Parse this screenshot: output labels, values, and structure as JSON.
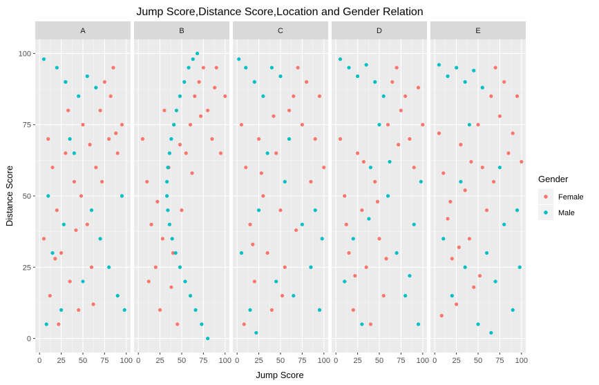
{
  "chart_data": {
    "type": "scatter",
    "title": "Jump Score,Distance Score,Location and Gender Relation",
    "xlabel": "Jump Score",
    "ylabel": "Distance Score",
    "xlim": [
      0,
      100
    ],
    "ylim": [
      0,
      100
    ],
    "x_ticks": [
      0,
      25,
      50,
      75,
      100
    ],
    "y_ticks": [
      0,
      25,
      50,
      75,
      100
    ],
    "x_tick_labels": [
      "0",
      "25",
      "50",
      "75",
      "100"
    ],
    "y_tick_labels": [
      "0",
      "25",
      "50",
      "75",
      "100"
    ],
    "grid": true,
    "legend": {
      "title": "Gender",
      "position": "right",
      "entries": [
        {
          "name": "Female",
          "color": "#F8766D"
        },
        {
          "name": "Male",
          "color": "#00BFC4"
        }
      ]
    },
    "facets": [
      {
        "label": "A",
        "series": [
          {
            "name": "Female",
            "points": [
              [
                10,
                70
              ],
              [
                15,
                60
              ],
              [
                20,
                45
              ],
              [
                25,
                30
              ],
              [
                30,
                65
              ],
              [
                35,
                20
              ],
              [
                40,
                55
              ],
              [
                45,
                10
              ],
              [
                50,
                75
              ],
              [
                55,
                40
              ],
              [
                60,
                25
              ],
              [
                65,
                60
              ],
              [
                70,
                80
              ],
              [
                75,
                90
              ],
              [
                80,
                70
              ],
              [
                85,
                95
              ],
              [
                90,
                65
              ],
              [
                95,
                75
              ],
              [
                5,
                35
              ],
              [
                12,
                15
              ],
              [
                22,
                5
              ],
              [
                33,
                80
              ],
              [
                48,
                50
              ],
              [
                58,
                68
              ],
              [
                72,
                55
              ],
              [
                82,
                85
              ],
              [
                88,
                72
              ],
              [
                18,
                28
              ],
              [
                42,
                38
              ],
              [
                62,
                12
              ]
            ]
          },
          {
            "name": "Male",
            "points": [
              [
                5,
                98
              ],
              [
                20,
                95
              ],
              [
                30,
                90
              ],
              [
                45,
                85
              ],
              [
                55,
                92
              ],
              [
                65,
                88
              ],
              [
                10,
                50
              ],
              [
                15,
                30
              ],
              [
                25,
                10
              ],
              [
                35,
                70
              ],
              [
                50,
                20
              ],
              [
                60,
                45
              ],
              [
                70,
                35
              ],
              [
                80,
                25
              ],
              [
                90,
                15
              ],
              [
                95,
                50
              ],
              [
                98,
                10
              ],
              [
                40,
                65
              ],
              [
                8,
                5
              ],
              [
                28,
                40
              ]
            ]
          }
        ]
      },
      {
        "label": "B",
        "series": [
          {
            "name": "Female",
            "points": [
              [
                5,
                70
              ],
              [
                10,
                55
              ],
              [
                15,
                40
              ],
              [
                20,
                25
              ],
              [
                25,
                10
              ],
              [
                30,
                80
              ],
              [
                35,
                60
              ],
              [
                40,
                30
              ],
              [
                45,
                5
              ],
              [
                50,
                45
              ],
              [
                55,
                65
              ],
              [
                60,
                75
              ],
              [
                65,
                85
              ],
              [
                70,
                90
              ],
              [
                75,
                95
              ],
              [
                80,
                80
              ],
              [
                85,
                70
              ],
              [
                90,
                95
              ],
              [
                95,
                65
              ],
              [
                100,
                85
              ],
              [
                12,
                20
              ],
              [
                22,
                48
              ],
              [
                28,
                35
              ],
              [
                38,
                18
              ],
              [
                48,
                68
              ],
              [
                62,
                58
              ],
              [
                72,
                78
              ],
              [
                88,
                88
              ]
            ]
          },
          {
            "name": "Male",
            "points": [
              [
                80,
                0
              ],
              [
                73,
                5
              ],
              [
                66,
                10
              ],
              [
                60,
                15
              ],
              [
                54,
                20
              ],
              [
                48,
                25
              ],
              [
                43,
                30
              ],
              [
                39,
                35
              ],
              [
                36,
                40
              ],
              [
                34,
                45
              ],
              [
                33,
                50
              ],
              [
                33,
                55
              ],
              [
                34,
                60
              ],
              [
                36,
                65
              ],
              [
                38,
                70
              ],
              [
                41,
                75
              ],
              [
                44,
                80
              ],
              [
                48,
                85
              ],
              [
                53,
                90
              ],
              [
                58,
                95
              ],
              [
                63,
                98
              ],
              [
                68,
                100
              ]
            ]
          }
        ]
      },
      {
        "label": "C",
        "series": [
          {
            "name": "Female",
            "points": [
              [
                5,
                75
              ],
              [
                10,
                60
              ],
              [
                15,
                40
              ],
              [
                20,
                20
              ],
              [
                25,
                70
              ],
              [
                30,
                50
              ],
              [
                35,
                30
              ],
              [
                40,
                10
              ],
              [
                45,
                65
              ],
              [
                50,
                45
              ],
              [
                55,
                25
              ],
              [
                60,
                80
              ],
              [
                65,
                85
              ],
              [
                70,
                95
              ],
              [
                75,
                75
              ],
              [
                80,
                90
              ],
              [
                85,
                55
              ],
              [
                90,
                70
              ],
              [
                95,
                85
              ],
              [
                100,
                60
              ],
              [
                8,
                5
              ],
              [
                18,
                33
              ],
              [
                28,
                58
              ],
              [
                42,
                78
              ],
              [
                52,
                15
              ],
              [
                68,
                38
              ]
            ]
          },
          {
            "name": "Male",
            "points": [
              [
                2,
                98
              ],
              [
                10,
                95
              ],
              [
                20,
                90
              ],
              [
                30,
                85
              ],
              [
                40,
                95
              ],
              [
                50,
                92
              ],
              [
                5,
                30
              ],
              [
                15,
                10
              ],
              [
                25,
                45
              ],
              [
                35,
                65
              ],
              [
                45,
                20
              ],
              [
                55,
                55
              ],
              [
                65,
                15
              ],
              [
                75,
                40
              ],
              [
                85,
                25
              ],
              [
                95,
                10
              ],
              [
                90,
                45
              ],
              [
                60,
                70
              ],
              [
                22,
                2
              ],
              [
                98,
                35
              ]
            ]
          }
        ]
      },
      {
        "label": "D",
        "series": [
          {
            "name": "Female",
            "points": [
              [
                5,
                70
              ],
              [
                10,
                50
              ],
              [
                15,
                30
              ],
              [
                20,
                10
              ],
              [
                25,
                65
              ],
              [
                30,
                45
              ],
              [
                35,
                25
              ],
              [
                40,
                5
              ],
              [
                45,
                55
              ],
              [
                50,
                35
              ],
              [
                55,
                15
              ],
              [
                60,
                75
              ],
              [
                65,
                90
              ],
              [
                70,
                95
              ],
              [
                75,
                80
              ],
              [
                80,
                85
              ],
              [
                85,
                70
              ],
              [
                90,
                60
              ],
              [
                95,
                88
              ],
              [
                100,
                75
              ],
              [
                12,
                40
              ],
              [
                22,
                22
              ],
              [
                32,
                62
              ],
              [
                48,
                48
              ],
              [
                58,
                28
              ],
              [
                72,
                68
              ]
            ]
          },
          {
            "name": "Male",
            "points": [
              [
                5,
                98
              ],
              [
                15,
                95
              ],
              [
                25,
                92
              ],
              [
                35,
                96
              ],
              [
                45,
                90
              ],
              [
                55,
                85
              ],
              [
                10,
                20
              ],
              [
                20,
                35
              ],
              [
                30,
                5
              ],
              [
                40,
                60
              ],
              [
                50,
                75
              ],
              [
                60,
                50
              ],
              [
                70,
                30
              ],
              [
                80,
                15
              ],
              [
                90,
                40
              ],
              [
                95,
                5
              ],
              [
                98,
                55
              ],
              [
                62,
                62
              ],
              [
                85,
                22
              ],
              [
                38,
                42
              ]
            ]
          }
        ]
      },
      {
        "label": "E",
        "series": [
          {
            "name": "Female",
            "points": [
              [
                5,
                72
              ],
              [
                10,
                58
              ],
              [
                15,
                42
              ],
              [
                20,
                28
              ],
              [
                25,
                12
              ],
              [
                30,
                68
              ],
              [
                35,
                52
              ],
              [
                40,
                35
              ],
              [
                45,
                18
              ],
              [
                50,
                75
              ],
              [
                55,
                60
              ],
              [
                60,
                45
              ],
              [
                65,
                85
              ],
              [
                70,
                95
              ],
              [
                75,
                78
              ],
              [
                80,
                90
              ],
              [
                85,
                65
              ],
              [
                90,
                72
              ],
              [
                95,
                85
              ],
              [
                100,
                62
              ],
              [
                8,
                8
              ],
              [
                18,
                48
              ],
              [
                28,
                32
              ],
              [
                42,
                62
              ],
              [
                52,
                22
              ],
              [
                68,
                55
              ]
            ]
          },
          {
            "name": "Male",
            "points": [
              [
                5,
                96
              ],
              [
                15,
                92
              ],
              [
                25,
                95
              ],
              [
                35,
                90
              ],
              [
                45,
                94
              ],
              [
                55,
                88
              ],
              [
                10,
                35
              ],
              [
                20,
                15
              ],
              [
                30,
                55
              ],
              [
                40,
                75
              ],
              [
                50,
                5
              ],
              [
                60,
                30
              ],
              [
                70,
                20
              ],
              [
                80,
                40
              ],
              [
                90,
                10
              ],
              [
                95,
                45
              ],
              [
                98,
                25
              ],
              [
                65,
                2
              ],
              [
                75,
                60
              ],
              [
                35,
                25
              ]
            ]
          }
        ]
      }
    ]
  }
}
